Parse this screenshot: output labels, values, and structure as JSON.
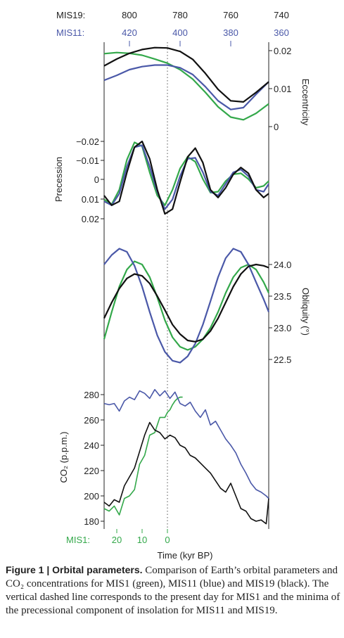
{
  "colors": {
    "mis1": "#33a84a",
    "mis11": "#4a58a8",
    "mis19": "#111111",
    "frame": "#222222",
    "dashed": "#555555"
  },
  "top_axis": {
    "mis19_label": "MIS19:",
    "mis19_ticks": [
      "800",
      "780",
      "760",
      "740"
    ],
    "mis11_label": "MIS11:",
    "mis11_ticks": [
      "420",
      "400",
      "380",
      "360"
    ]
  },
  "bottom_axis": {
    "mis1_label": "MIS1:",
    "mis1_ticks": [
      "20",
      "10",
      "0"
    ],
    "xlabel": "Time (kyr BP)"
  },
  "caption": {
    "title": "Figure 1 | Orbital parameters.",
    "text": " Comparison of Earth’s orbital parameters and CO₂ concentrations for MIS1 (green), MIS11 (blue) and MIS19 (black). The vertical dashed line corresponds to the present day for MIS1 and the minima of the precessional component of insolation for MIS11 and MIS19."
  },
  "chart_data": [
    {
      "type": "line",
      "ylabel": "Eccentricity",
      "yticks": [
        "0.02",
        "0.01",
        "0"
      ],
      "ylim": [
        0,
        0.02
      ],
      "x_common": [
        -25,
        -20,
        -15,
        -10,
        -5,
        0,
        5,
        10,
        15,
        20,
        25,
        30,
        35,
        40
      ],
      "series": [
        {
          "name": "MIS1",
          "values": [
            0.0192,
            0.0195,
            0.0193,
            0.0188,
            0.0178,
            0.0167,
            0.015,
            0.0125,
            0.009,
            0.0052,
            0.0025,
            0.0018,
            0.0035,
            0.006
          ]
        },
        {
          "name": "MIS11",
          "values": [
            0.0122,
            0.0135,
            0.015,
            0.0158,
            0.0162,
            0.0162,
            0.0155,
            0.0137,
            0.0105,
            0.0068,
            0.0045,
            0.005,
            0.0085,
            0.0118
          ]
        },
        {
          "name": "MIS19",
          "values": [
            0.016,
            0.0178,
            0.0193,
            0.0203,
            0.0208,
            0.0207,
            0.0198,
            0.0177,
            0.014,
            0.0098,
            0.0068,
            0.0065,
            0.009,
            0.0118
          ]
        }
      ]
    },
    {
      "type": "line",
      "ylabel": "Precession",
      "yticks": [
        "−0.02",
        "−0.01",
        "0",
        "0.01",
        "0.02"
      ],
      "ylim": [
        -0.02,
        0.02
      ],
      "x_common": [
        -25,
        -22,
        -19,
        -16,
        -13,
        -10,
        -7,
        -4,
        -1,
        2,
        5,
        8,
        11,
        14,
        17,
        20,
        23,
        26,
        29,
        32,
        35,
        38,
        40
      ],
      "series": [
        {
          "name": "MIS1",
          "values": [
            0.01,
            0.0125,
            0.005,
            -0.0105,
            -0.0195,
            -0.0175,
            -0.004,
            0.008,
            0.013,
            0.005,
            -0.006,
            -0.012,
            -0.0095,
            -0.0005,
            0.0065,
            0.006,
            0.0005,
            -0.003,
            -0.0035,
            -0.0005,
            0.004,
            0.003,
            0.0005
          ]
        },
        {
          "name": "MIS11",
          "values": [
            0.011,
            0.013,
            0.007,
            -0.007,
            -0.017,
            -0.018,
            -0.007,
            0.006,
            0.015,
            0.01,
            -0.002,
            -0.011,
            -0.0115,
            -0.004,
            0.006,
            0.008,
            0.002,
            -0.004,
            -0.0055,
            -0.002,
            0.005,
            0.006,
            0.002
          ]
        },
        {
          "name": "MIS19",
          "values": [
            0.008,
            0.013,
            0.011,
            -0.004,
            -0.017,
            -0.02,
            -0.011,
            0.005,
            0.0175,
            0.015,
            0.001,
            -0.012,
            -0.0165,
            -0.009,
            0.005,
            0.009,
            0.004,
            -0.003,
            -0.0065,
            -0.0035,
            0.005,
            0.009,
            0.007
          ]
        }
      ]
    },
    {
      "type": "line",
      "ylabel": "Obliquity (°)",
      "yticks": [
        "24.0",
        "23.5",
        "23.0",
        "22.5"
      ],
      "ylim": [
        22.5,
        24.0
      ],
      "x_common": [
        -25,
        -22,
        -19,
        -16,
        -13,
        -10,
        -7,
        -4,
        -1,
        2,
        5,
        8,
        11,
        14,
        17,
        20,
        23,
        26,
        29,
        32,
        35,
        38,
        40
      ],
      "series": [
        {
          "name": "MIS1",
          "values": [
            22.82,
            23.25,
            23.65,
            23.92,
            24.05,
            24.0,
            23.8,
            23.48,
            23.12,
            22.85,
            22.7,
            22.65,
            22.7,
            22.82,
            23.0,
            23.25,
            23.55,
            23.8,
            23.95,
            24.0,
            23.92,
            23.72,
            23.55
          ]
        },
        {
          "name": "MIS11",
          "values": [
            24.0,
            24.15,
            24.25,
            24.2,
            23.98,
            23.65,
            23.25,
            22.88,
            22.62,
            22.48,
            22.45,
            22.55,
            22.75,
            23.05,
            23.42,
            23.8,
            24.1,
            24.25,
            24.2,
            24.0,
            23.72,
            23.45,
            23.25
          ]
        },
        {
          "name": "MIS19",
          "values": [
            23.15,
            23.4,
            23.62,
            23.78,
            23.85,
            23.82,
            23.7,
            23.5,
            23.28,
            23.05,
            22.9,
            22.8,
            22.78,
            22.82,
            22.95,
            23.15,
            23.4,
            23.65,
            23.85,
            23.97,
            24.0,
            23.98,
            23.95
          ]
        }
      ]
    },
    {
      "type": "line",
      "ylabel": "CO₂ (p.p.m.)",
      "yticks": [
        "280",
        "260",
        "240",
        "220",
        "200",
        "180"
      ],
      "ylim": [
        180,
        280
      ],
      "x_common": [
        -25,
        -23,
        -21,
        -19,
        -17,
        -15,
        -13,
        -11,
        -9,
        -7,
        -5,
        -3,
        -1,
        1,
        3,
        5,
        7,
        9,
        11,
        13,
        15,
        17,
        19,
        21,
        23,
        25,
        27,
        29,
        31,
        33,
        35,
        37,
        39,
        40
      ],
      "series": [
        {
          "name": "MIS1",
          "values": [
            190,
            188,
            192,
            185,
            198,
            200,
            205,
            225,
            232,
            248,
            250,
            262,
            262,
            266,
            268,
            272,
            275,
            277,
            278,
            278
          ]
        },
        {
          "name": "MIS11",
          "values": [
            273,
            272,
            273,
            267,
            275,
            278,
            276,
            283,
            281,
            277,
            284,
            279,
            283,
            277,
            282,
            273,
            271,
            274,
            267,
            262,
            268,
            256,
            259,
            252,
            245,
            240,
            234,
            225,
            218,
            210,
            205,
            203,
            200,
            198
          ]
        },
        {
          "name": "MIS19",
          "values": [
            195,
            192,
            197,
            195,
            208,
            215,
            222,
            235,
            248,
            258,
            252,
            250,
            245,
            248,
            246,
            240,
            238,
            232,
            230,
            226,
            222,
            218,
            212,
            206,
            203,
            210,
            200,
            190,
            188,
            182,
            180,
            181,
            178,
            198
          ]
        }
      ],
      "x_mis1": [
        -25,
        -23,
        -21,
        -19,
        -17,
        -15,
        -13,
        -11,
        -9,
        -7,
        -5,
        -3,
        -1,
        0,
        1,
        2,
        3,
        4,
        5,
        6
      ]
    }
  ]
}
